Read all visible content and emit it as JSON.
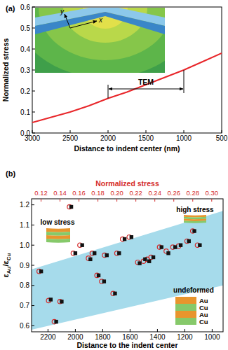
{
  "chart_data": [
    {
      "type": "line",
      "panel_label": "(a)",
      "xlabel": "Distance to indent center (nm)",
      "ylabel": "Normalized stress",
      "xlim": [
        3000,
        500
      ],
      "xticks": [
        3000,
        2500,
        2000,
        1500,
        1000,
        500
      ],
      "ylim": [
        0,
        0.6
      ],
      "yticks": [
        {
          "value": 0,
          "label": "0.0"
        },
        0.1,
        0.2,
        0.3,
        0.4,
        0.5,
        0.6
      ],
      "series": [
        {
          "color": "#e8262a",
          "x": [
            3000,
            2750,
            2500,
            2250,
            2000,
            1750,
            1500,
            1250,
            1000,
            750,
            500
          ],
          "values": [
            0.05,
            0.075,
            0.1,
            0.13,
            0.165,
            0.195,
            0.23,
            0.265,
            0.3,
            0.34,
            0.38
          ]
        }
      ],
      "annotations": [
        {
          "text": "TEM",
          "x": [
            2000,
            1000
          ]
        }
      ],
      "inset_labels": [
        "y",
        "x"
      ]
    },
    {
      "type": "scatter",
      "panel_label": "(b)",
      "xlabel": "Distance to the indent center",
      "ylabel": "εAu/εCu",
      "x2label": "Normalized stress",
      "xlim": [
        2320,
        920
      ],
      "xticks": [
        2200,
        2000,
        1800,
        1600,
        1400,
        1200,
        1000
      ],
      "x2lim": [
        0.11,
        0.312
      ],
      "x2ticks": [
        0.12,
        0.14,
        0.16,
        0.18,
        {
          "value": 0.2,
          "label": "0.20"
        },
        0.22,
        0.24,
        0.26,
        0.28,
        {
          "value": 0.3,
          "label": "0.30"
        }
      ],
      "ylim": [
        0.57,
        1.23
      ],
      "yticks": [
        0.6,
        0.7,
        0.8,
        0.9,
        {
          "value": 1,
          "label": "1.0"
        },
        1.1,
        1.2
      ],
      "series": [
        {
          "marker": "square",
          "color": "#111111",
          "x": [
            2250,
            2180,
            2100,
            2140,
            2000,
            2030,
            1950,
            1890,
            1860,
            1830,
            1790,
            1770,
            1710,
            1680,
            1640,
            1590,
            1530,
            1490,
            1460,
            1430,
            1370,
            1320,
            1270,
            1230,
            1170,
            1130,
            1090
          ],
          "values": [
            0.87,
            0.73,
            0.72,
            0.62,
            0.96,
            1.19,
            1.0,
            0.93,
            0.96,
            0.85,
            0.82,
            0.95,
            0.76,
            0.96,
            1.03,
            1.04,
            0.91,
            0.93,
            0.92,
            0.94,
            0.99,
            0.96,
            0.99,
            1.0,
            1.02,
            1.07,
            1.0
          ]
        },
        {
          "marker": "circle",
          "color": "#d42a2a",
          "axis": "x2",
          "x": [
            0.118,
            0.128,
            0.14,
            0.134,
            0.154,
            0.15,
            0.161,
            0.17,
            0.174,
            0.179,
            0.184,
            0.187,
            0.196,
            0.2,
            0.206,
            0.213,
            0.222,
            0.228,
            0.232,
            0.236,
            0.245,
            0.252,
            0.259,
            0.265,
            0.274,
            0.28,
            0.285
          ],
          "values": [
            0.87,
            0.725,
            0.72,
            0.62,
            0.96,
            1.19,
            1.0,
            0.935,
            0.96,
            0.85,
            0.82,
            0.95,
            0.76,
            0.96,
            1.03,
            1.04,
            0.915,
            0.92,
            0.93,
            0.94,
            0.99,
            0.97,
            0.99,
            0.995,
            1.02,
            1.07,
            1.0
          ]
        }
      ],
      "band": {
        "color": "#a6dbeb",
        "x": [
          2320,
          920,
          920,
          2320
        ],
        "y": [
          0.88,
          1.17,
          0.8,
          0.58
        ]
      },
      "annotations": [
        "low stress",
        "high stress",
        "undeformed"
      ],
      "layers": [
        "Au",
        "Cu",
        "Au",
        "Cu"
      ]
    }
  ]
}
